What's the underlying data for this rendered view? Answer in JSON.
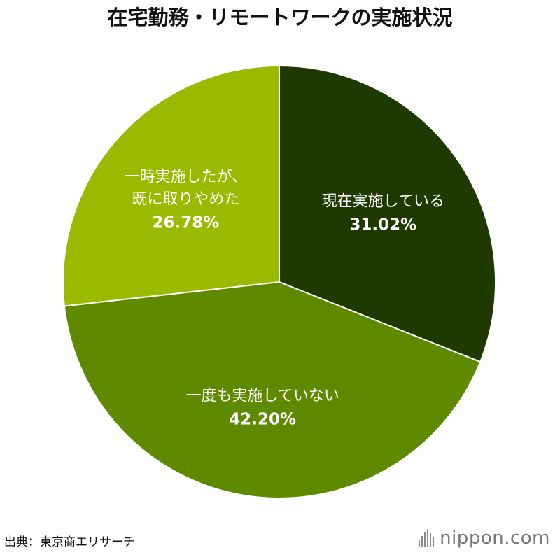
{
  "title": "在宅勤務・リモートワークの実施状況",
  "source": "出典：東京商エリサーチ",
  "logo": "nippon.com",
  "chart_data": {
    "type": "pie",
    "title": "在宅勤務・リモートワークの実施状況",
    "start": "12 o'clock",
    "direction": "clockwise",
    "slices": [
      {
        "label": [
          "現在実施している"
        ],
        "value": 31.02,
        "display": "31.02%",
        "color": "#1e3a00"
      },
      {
        "label": [
          "一度も実施していない"
        ],
        "value": 42.2,
        "display": "42.20%",
        "color": "#5f8a00"
      },
      {
        "label": [
          "一時実施したが、",
          "既に取りやめた"
        ],
        "value": 26.78,
        "display": "26.78%",
        "color": "#9aba00"
      }
    ]
  }
}
